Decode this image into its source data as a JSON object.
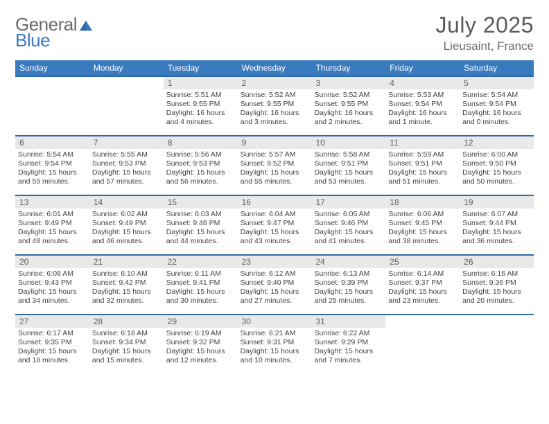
{
  "logo": {
    "word1": "General",
    "word2": "Blue"
  },
  "title": "July 2025",
  "location": "Lieusaint, France",
  "colors": {
    "header_bg": "#3a7abf",
    "header_border": "#2f6aa8",
    "daynum_bg": "#e9e9e9",
    "text": "#424242",
    "title_color": "#5b5b5b"
  },
  "day_headers": [
    "Sunday",
    "Monday",
    "Tuesday",
    "Wednesday",
    "Thursday",
    "Friday",
    "Saturday"
  ],
  "weeks": [
    [
      {
        "blank": true
      },
      {
        "blank": true
      },
      {
        "day": "1",
        "sunrise": "Sunrise: 5:51 AM",
        "sunset": "Sunset: 9:55 PM",
        "daylight": "Daylight: 16 hours and 4 minutes."
      },
      {
        "day": "2",
        "sunrise": "Sunrise: 5:52 AM",
        "sunset": "Sunset: 9:55 PM",
        "daylight": "Daylight: 16 hours and 3 minutes."
      },
      {
        "day": "3",
        "sunrise": "Sunrise: 5:52 AM",
        "sunset": "Sunset: 9:55 PM",
        "daylight": "Daylight: 16 hours and 2 minutes."
      },
      {
        "day": "4",
        "sunrise": "Sunrise: 5:53 AM",
        "sunset": "Sunset: 9:54 PM",
        "daylight": "Daylight: 16 hours and 1 minute."
      },
      {
        "day": "5",
        "sunrise": "Sunrise: 5:54 AM",
        "sunset": "Sunset: 9:54 PM",
        "daylight": "Daylight: 16 hours and 0 minutes."
      }
    ],
    [
      {
        "day": "6",
        "sunrise": "Sunrise: 5:54 AM",
        "sunset": "Sunset: 9:54 PM",
        "daylight": "Daylight: 15 hours and 59 minutes."
      },
      {
        "day": "7",
        "sunrise": "Sunrise: 5:55 AM",
        "sunset": "Sunset: 9:53 PM",
        "daylight": "Daylight: 15 hours and 57 minutes."
      },
      {
        "day": "8",
        "sunrise": "Sunrise: 5:56 AM",
        "sunset": "Sunset: 9:53 PM",
        "daylight": "Daylight: 15 hours and 56 minutes."
      },
      {
        "day": "9",
        "sunrise": "Sunrise: 5:57 AM",
        "sunset": "Sunset: 9:52 PM",
        "daylight": "Daylight: 15 hours and 55 minutes."
      },
      {
        "day": "10",
        "sunrise": "Sunrise: 5:58 AM",
        "sunset": "Sunset: 9:51 PM",
        "daylight": "Daylight: 15 hours and 53 minutes."
      },
      {
        "day": "11",
        "sunrise": "Sunrise: 5:59 AM",
        "sunset": "Sunset: 9:51 PM",
        "daylight": "Daylight: 15 hours and 51 minutes."
      },
      {
        "day": "12",
        "sunrise": "Sunrise: 6:00 AM",
        "sunset": "Sunset: 9:50 PM",
        "daylight": "Daylight: 15 hours and 50 minutes."
      }
    ],
    [
      {
        "day": "13",
        "sunrise": "Sunrise: 6:01 AM",
        "sunset": "Sunset: 9:49 PM",
        "daylight": "Daylight: 15 hours and 48 minutes."
      },
      {
        "day": "14",
        "sunrise": "Sunrise: 6:02 AM",
        "sunset": "Sunset: 9:49 PM",
        "daylight": "Daylight: 15 hours and 46 minutes."
      },
      {
        "day": "15",
        "sunrise": "Sunrise: 6:03 AM",
        "sunset": "Sunset: 9:48 PM",
        "daylight": "Daylight: 15 hours and 44 minutes."
      },
      {
        "day": "16",
        "sunrise": "Sunrise: 6:04 AM",
        "sunset": "Sunset: 9:47 PM",
        "daylight": "Daylight: 15 hours and 43 minutes."
      },
      {
        "day": "17",
        "sunrise": "Sunrise: 6:05 AM",
        "sunset": "Sunset: 9:46 PM",
        "daylight": "Daylight: 15 hours and 41 minutes."
      },
      {
        "day": "18",
        "sunrise": "Sunrise: 6:06 AM",
        "sunset": "Sunset: 9:45 PM",
        "daylight": "Daylight: 15 hours and 38 minutes."
      },
      {
        "day": "19",
        "sunrise": "Sunrise: 6:07 AM",
        "sunset": "Sunset: 9:44 PM",
        "daylight": "Daylight: 15 hours and 36 minutes."
      }
    ],
    [
      {
        "day": "20",
        "sunrise": "Sunrise: 6:08 AM",
        "sunset": "Sunset: 9:43 PM",
        "daylight": "Daylight: 15 hours and 34 minutes."
      },
      {
        "day": "21",
        "sunrise": "Sunrise: 6:10 AM",
        "sunset": "Sunset: 9:42 PM",
        "daylight": "Daylight: 15 hours and 32 minutes."
      },
      {
        "day": "22",
        "sunrise": "Sunrise: 6:11 AM",
        "sunset": "Sunset: 9:41 PM",
        "daylight": "Daylight: 15 hours and 30 minutes."
      },
      {
        "day": "23",
        "sunrise": "Sunrise: 6:12 AM",
        "sunset": "Sunset: 9:40 PM",
        "daylight": "Daylight: 15 hours and 27 minutes."
      },
      {
        "day": "24",
        "sunrise": "Sunrise: 6:13 AM",
        "sunset": "Sunset: 9:39 PM",
        "daylight": "Daylight: 15 hours and 25 minutes."
      },
      {
        "day": "25",
        "sunrise": "Sunrise: 6:14 AM",
        "sunset": "Sunset: 9:37 PM",
        "daylight": "Daylight: 15 hours and 23 minutes."
      },
      {
        "day": "26",
        "sunrise": "Sunrise: 6:16 AM",
        "sunset": "Sunset: 9:36 PM",
        "daylight": "Daylight: 15 hours and 20 minutes."
      }
    ],
    [
      {
        "day": "27",
        "sunrise": "Sunrise: 6:17 AM",
        "sunset": "Sunset: 9:35 PM",
        "daylight": "Daylight: 15 hours and 18 minutes."
      },
      {
        "day": "28",
        "sunrise": "Sunrise: 6:18 AM",
        "sunset": "Sunset: 9:34 PM",
        "daylight": "Daylight: 15 hours and 15 minutes."
      },
      {
        "day": "29",
        "sunrise": "Sunrise: 6:19 AM",
        "sunset": "Sunset: 9:32 PM",
        "daylight": "Daylight: 15 hours and 12 minutes."
      },
      {
        "day": "30",
        "sunrise": "Sunrise: 6:21 AM",
        "sunset": "Sunset: 9:31 PM",
        "daylight": "Daylight: 15 hours and 10 minutes."
      },
      {
        "day": "31",
        "sunrise": "Sunrise: 6:22 AM",
        "sunset": "Sunset: 9:29 PM",
        "daylight": "Daylight: 15 hours and 7 minutes."
      },
      {
        "blank": true
      },
      {
        "blank": true
      }
    ]
  ]
}
